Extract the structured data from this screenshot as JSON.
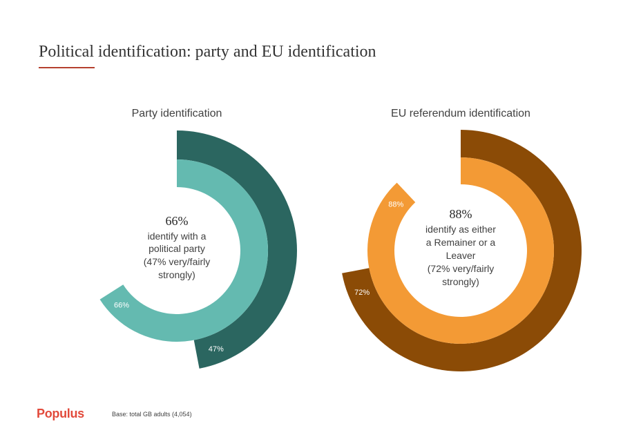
{
  "header": {
    "title": "Political identification: party and EU identification"
  },
  "colors": {
    "title_rule": "#b5402e",
    "party_outer": "#2b6660",
    "party_inner": "#64bab0",
    "eu_outer": "#8b4b06",
    "eu_inner": "#f39a35"
  },
  "chart_data": [
    {
      "type": "radial_bar",
      "title": "Party identification",
      "series": [
        {
          "name": "very/fairly strongly",
          "value": 47,
          "label": "47%"
        },
        {
          "name": "identify with a political party",
          "value": 66,
          "label": "66%"
        }
      ],
      "center": {
        "value": "66%",
        "lines": [
          "identify with a",
          "political party",
          "(47% very/fairly",
          "strongly)"
        ]
      }
    },
    {
      "type": "radial_bar",
      "title": "EU referendum identification",
      "series": [
        {
          "name": "very/fairly strongly",
          "value": 72,
          "label": "72%"
        },
        {
          "name": "identify as either a Remainer or a Leaver",
          "value": 88,
          "label": "88%"
        }
      ],
      "center": {
        "value": "88%",
        "lines": [
          "identify as either",
          "a Remainer or a",
          "Leaver",
          "(72% very/fairly",
          "strongly)"
        ]
      }
    }
  ],
  "footer": {
    "logo": "Populus",
    "base_note": "Base: total GB adults (4,054)"
  }
}
